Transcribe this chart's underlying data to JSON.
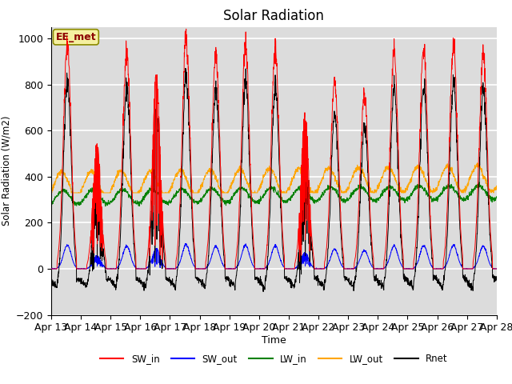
{
  "title": "Solar Radiation",
  "xlabel": "Time",
  "ylabel": "Solar Radiation (W/m2)",
  "ylim": [
    -200,
    1050
  ],
  "annotation": "EE_met",
  "series_colors": {
    "SW_in": "red",
    "SW_out": "blue",
    "LW_in": "green",
    "LW_out": "orange",
    "Rnet": "black"
  },
  "x_tick_labels": [
    "Apr 13",
    "Apr 14",
    "Apr 15",
    "Apr 16",
    "Apr 17",
    "Apr 18",
    "Apr 19",
    "Apr 20",
    "Apr 21",
    "Apr 22",
    "Apr 23",
    "Apr 24",
    "Apr 25",
    "Apr 26",
    "Apr 27",
    "Apr 28"
  ],
  "background_color": "#dcdcdc",
  "grid_color": "white",
  "title_fontsize": 12
}
